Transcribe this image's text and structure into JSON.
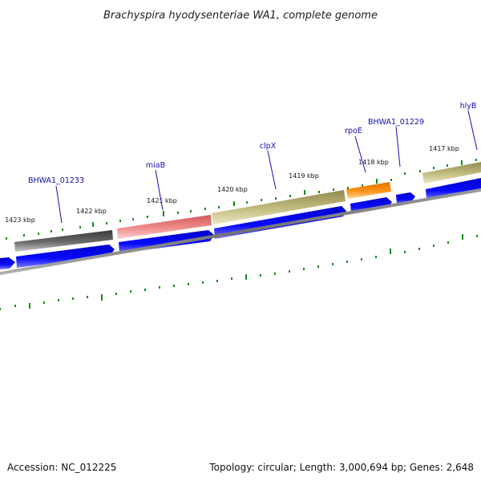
{
  "title": "Brachyspira hyodysenteriae WA1, complete genome",
  "kbp_labels": [
    "1423 kbp",
    "1422 kbp",
    "1421 kbp",
    "1420 kbp",
    "1419 kbp",
    "1418 kbp",
    "1417 kbp"
  ],
  "gene_labels": [
    "BHWA1_01233",
    "miaB",
    "clpX",
    "rpoE",
    "BHWA1_01229",
    "hlyB"
  ],
  "footer": {
    "accession": "Accession: NC_012225",
    "summary": "Topology: circular; Length: 3,000,694 bp; Genes: 2,648"
  },
  "colors": {
    "cds_arrow": "#0000ee",
    "feature_dark": "#555555",
    "feature_pink": "#e87e7e",
    "feature_olive": "#b8b26e",
    "feature_orange": "#ff8c00",
    "backbone": "#808080",
    "ticks": "#1a8a1a",
    "label_text": "#1010b0"
  }
}
